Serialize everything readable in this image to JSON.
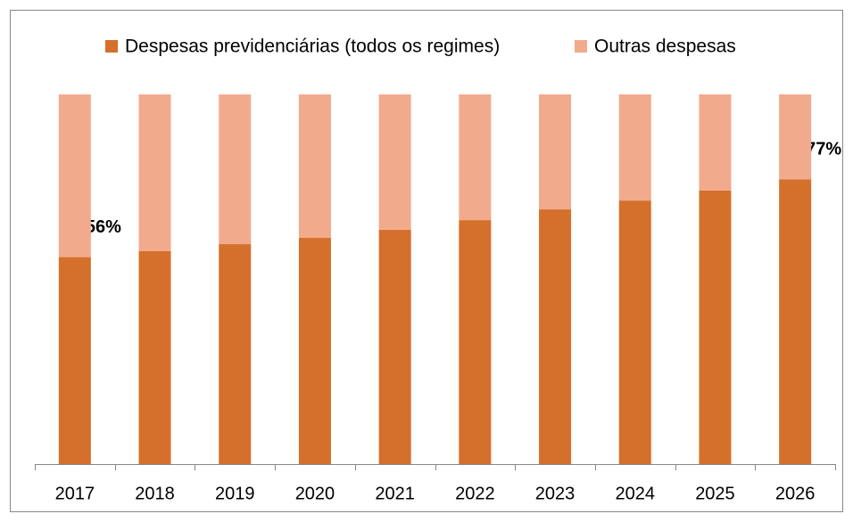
{
  "chart_data": {
    "type": "stacked_bar",
    "categories": [
      "2017",
      "2018",
      "2019",
      "2020",
      "2021",
      "2022",
      "2023",
      "2024",
      "2025",
      "2026"
    ],
    "series": [
      {
        "name": "Despesas previdenciárias (todos os regimes)",
        "color": "#d4702b",
        "values": [
          56,
          57.6,
          59.5,
          61.2,
          63.4,
          66,
          68.9,
          71.3,
          74,
          77
        ],
        "value_labels": [
          "56%",
          null,
          null,
          null,
          null,
          null,
          null,
          null,
          null,
          "77%"
        ]
      },
      {
        "name": "Outras despesas",
        "color": "#f2aa8c",
        "values": [
          44,
          42.4,
          40.5,
          38.8,
          36.6,
          34,
          31.1,
          28.7,
          26,
          23
        ]
      }
    ],
    "ylim": [
      0,
      100
    ],
    "legend": "top"
  }
}
